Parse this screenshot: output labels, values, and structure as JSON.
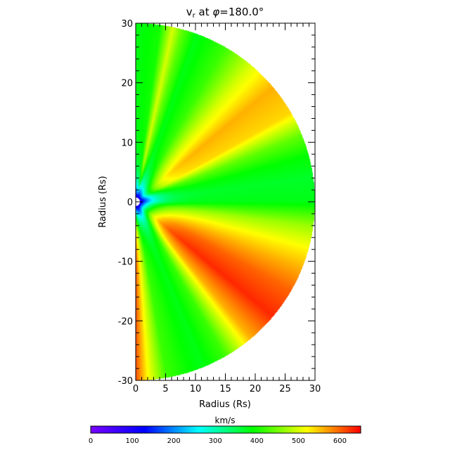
{
  "chart_data": {
    "type": "heatmap",
    "plot": {
      "title_main": "v",
      "title_sub": "r",
      "title_rest": " at ",
      "title_phi": "φ",
      "title_value": "=180.0°",
      "xlabel": "Radius (Rs)",
      "ylabel": "Radius (Rs)",
      "xlim": [
        0,
        30
      ],
      "ylim": [
        -30,
        30
      ],
      "xticks": [
        "0",
        "5",
        "10",
        "15",
        "20",
        "25",
        "30"
      ],
      "yticks": [
        "-30",
        "-20",
        "-10",
        "0",
        "10",
        "20",
        "30"
      ],
      "inner_boundary_radius": 1,
      "outer_radius": 30
    },
    "colorbar": {
      "label": "km/s",
      "range": [
        0,
        650
      ],
      "ticks": [
        "0",
        "100",
        "200",
        "300",
        "400",
        "500",
        "600"
      ]
    },
    "colors": {
      "scale": [
        "#7800ff",
        "#0000ff",
        "#00ffff",
        "#00ff00",
        "#ffff00",
        "#ff0000"
      ]
    },
    "sectors": [
      {
        "angle": 90,
        "speed": 380
      },
      {
        "angle": 82,
        "speed": 400
      },
      {
        "angle": 78,
        "speed": 500
      },
      {
        "angle": 75,
        "speed": 440
      },
      {
        "angle": 70,
        "speed": 380
      },
      {
        "angle": 60,
        "speed": 420
      },
      {
        "angle": 50,
        "speed": 500
      },
      {
        "angle": 40,
        "speed": 560
      },
      {
        "angle": 30,
        "speed": 540
      },
      {
        "angle": 22,
        "speed": 440
      },
      {
        "angle": 15,
        "speed": 390
      },
      {
        "angle": 8,
        "speed": 370
      },
      {
        "angle": 0,
        "speed": 380
      },
      {
        "angle": -8,
        "speed": 470
      },
      {
        "angle": -15,
        "speed": 520
      },
      {
        "angle": -22,
        "speed": 560
      },
      {
        "angle": -30,
        "speed": 600
      },
      {
        "angle": -40,
        "speed": 630
      },
      {
        "angle": -50,
        "speed": 560
      },
      {
        "angle": -60,
        "speed": 420
      },
      {
        "angle": -68,
        "speed": 380
      },
      {
        "angle": -72,
        "speed": 390
      },
      {
        "angle": -80,
        "speed": 420
      },
      {
        "angle": -86,
        "speed": 520
      },
      {
        "angle": -90,
        "speed": 610
      }
    ]
  }
}
